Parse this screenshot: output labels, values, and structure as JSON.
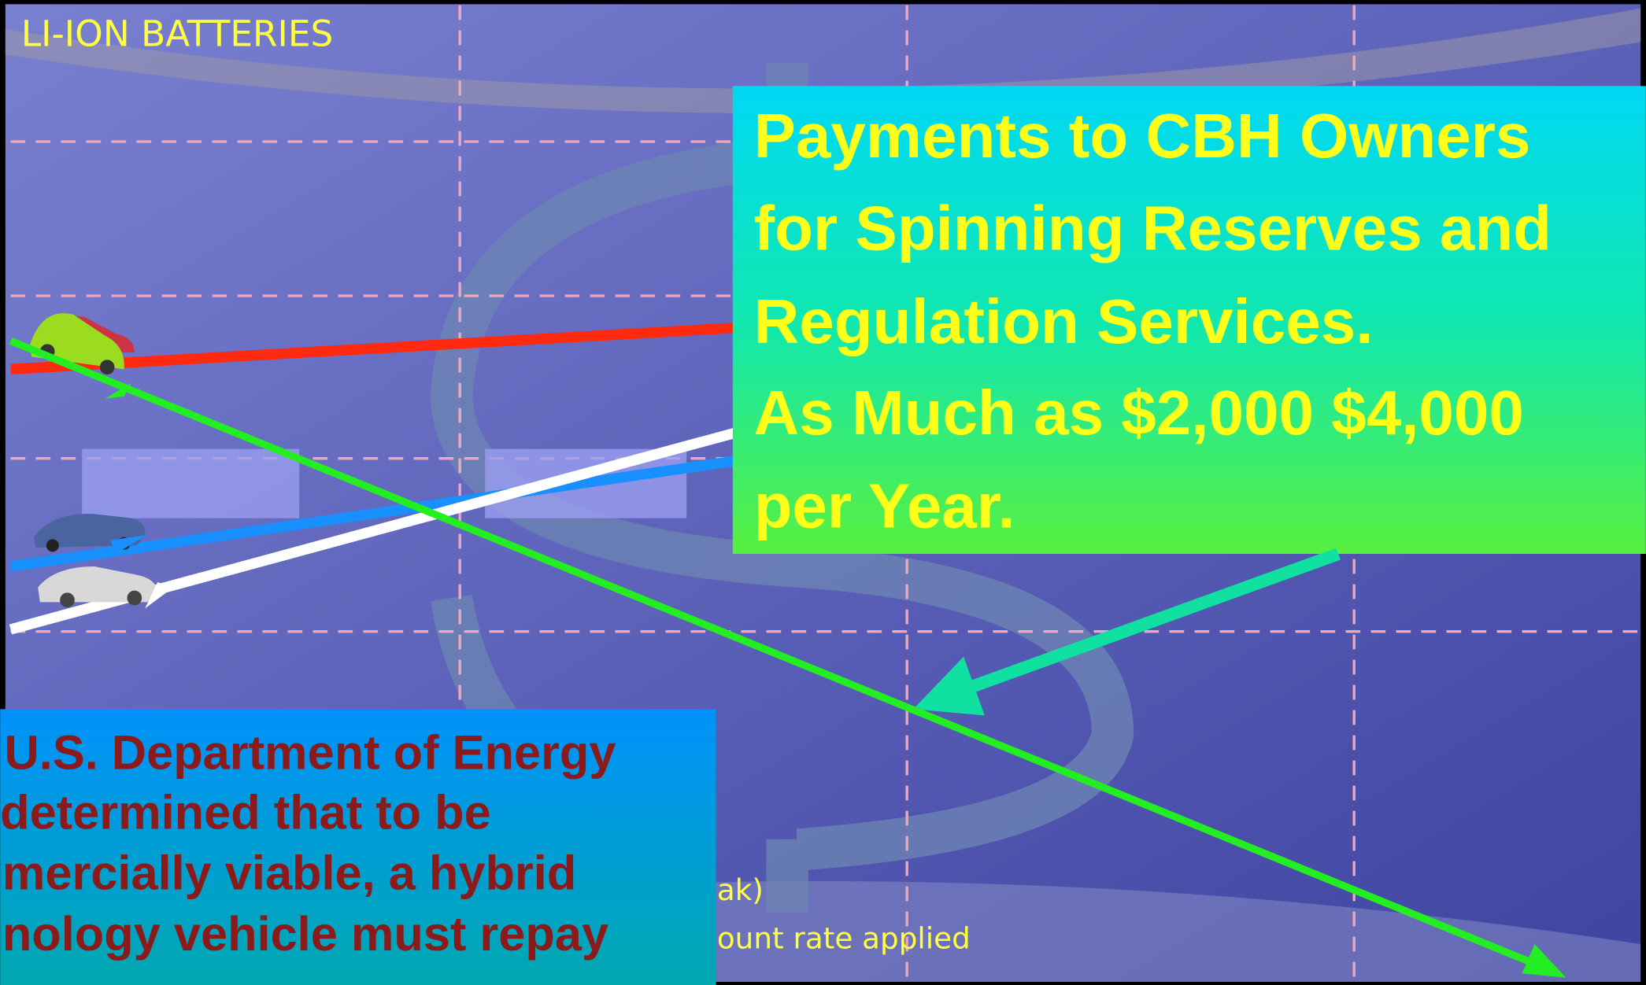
{
  "header": {
    "title": "LI-ION BATTERIES"
  },
  "callout": {
    "lines": [
      "Payments to CBH Owners",
      "for Spinning Reserves and",
      "Regulation Services.",
      "As Much as $2,000 $4,000",
      "per Year."
    ]
  },
  "doe_box": {
    "lines": [
      "U.S. Department of Energy",
      "determined that to be",
      "mercially viable, a hybrid",
      "nology vehicle must repay"
    ]
  },
  "fragments": [
    "ak)",
    "ount rate applied"
  ]
}
